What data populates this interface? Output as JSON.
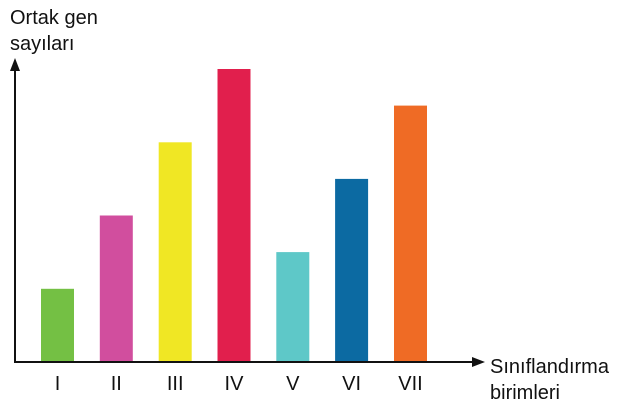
{
  "chart_data": {
    "type": "bar",
    "categories": [
      "I",
      "II",
      "III",
      "IV",
      "V",
      "VI",
      "VII"
    ],
    "values": [
      2,
      4,
      6,
      8,
      3,
      5,
      7
    ],
    "colors": [
      "#74c044",
      "#d14e9e",
      "#f0e724",
      "#e11f4d",
      "#5ec8c8",
      "#0c6aa2",
      "#ef6b25"
    ],
    "ylabel_lines": [
      "Ortak gen",
      "sayıları"
    ],
    "xlabel_lines": [
      "Sınıflandırma",
      "birimleri"
    ],
    "ylim": [
      0,
      8
    ],
    "grid": false,
    "legend": false
  }
}
